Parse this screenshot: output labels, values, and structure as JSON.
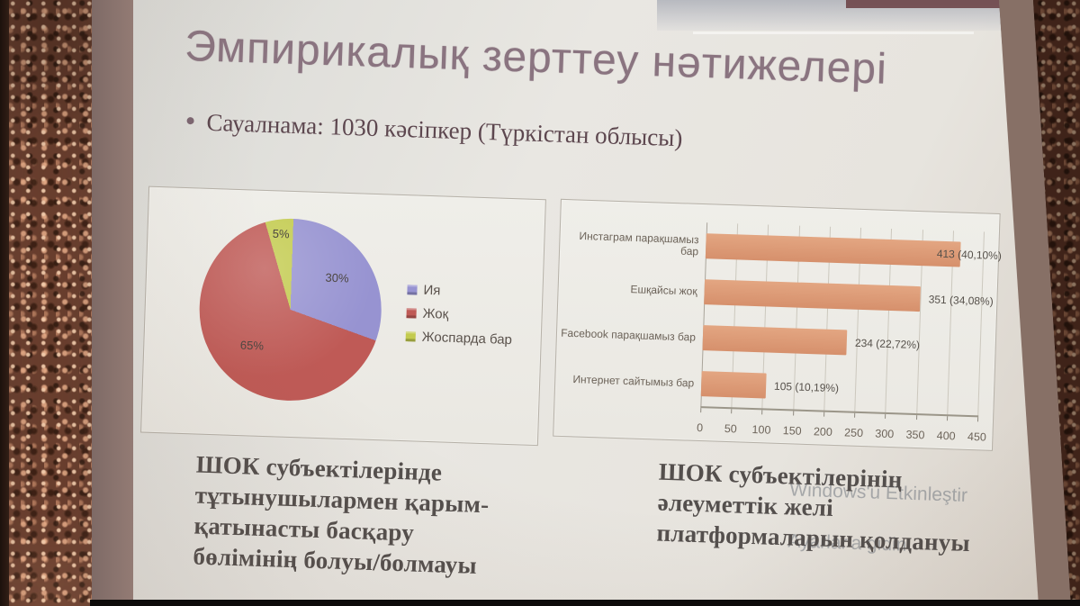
{
  "photo": {
    "frame_colors": {
      "copper": "#6e4130",
      "bezel": "#8c7470",
      "edge": "#221510",
      "bottom_bar": "#0d0b0a"
    }
  },
  "slide": {
    "title": "Эмпирикалық зерттеу нәтижелері",
    "title_color": "#8a7480",
    "bullet_text": "Сауалнама: 1030 кәсіпкер (Түркістан облысы)",
    "text_color": "#5d474f",
    "caption_left": "ШОК субъектілерінде\nтұтынушылармен қарым-\nқатынасты басқару\nбөлімінің болуы/болмауы",
    "caption_right": "ШОК субъектілерінің\nәлеуметтік желі\nплатформаларын қолдануы"
  },
  "watermark": {
    "line1": "Windows'u Etkinleştir",
    "line2": "Ayarlar'a gidin."
  },
  "chart_data": [
    {
      "type": "pie",
      "categories": [
        "Ия",
        "Жоқ",
        "Жоспарда бар"
      ],
      "values": [
        30,
        65,
        5
      ],
      "slice_labels": [
        "30%",
        "65%",
        "5%"
      ],
      "colors": [
        "#9793d1",
        "#bf5a56",
        "#c3cb4f"
      ],
      "legend_position": "right",
      "label_radius": [
        0.62,
        0.58,
        0.84
      ],
      "start_angle": 0,
      "direction": "clockwise"
    },
    {
      "type": "bar",
      "orientation": "horizontal",
      "categories": [
        "Инстаграм парақшамыз бар",
        "Ешқайсы жоқ",
        "Facebook парақшамыз бар",
        "Интернет сайтымыз бар"
      ],
      "values": [
        413,
        351,
        234,
        105
      ],
      "data_labels": [
        "413  (40,10%)",
        "351  (34,08%)",
        "234  (22,72%)",
        "105  (10,19%)"
      ],
      "xlim": [
        0,
        450
      ],
      "xticks": [
        0,
        50,
        100,
        150,
        200,
        250,
        300,
        350,
        400,
        450
      ],
      "bar_color": "#dc9a77",
      "grid": true
    }
  ]
}
